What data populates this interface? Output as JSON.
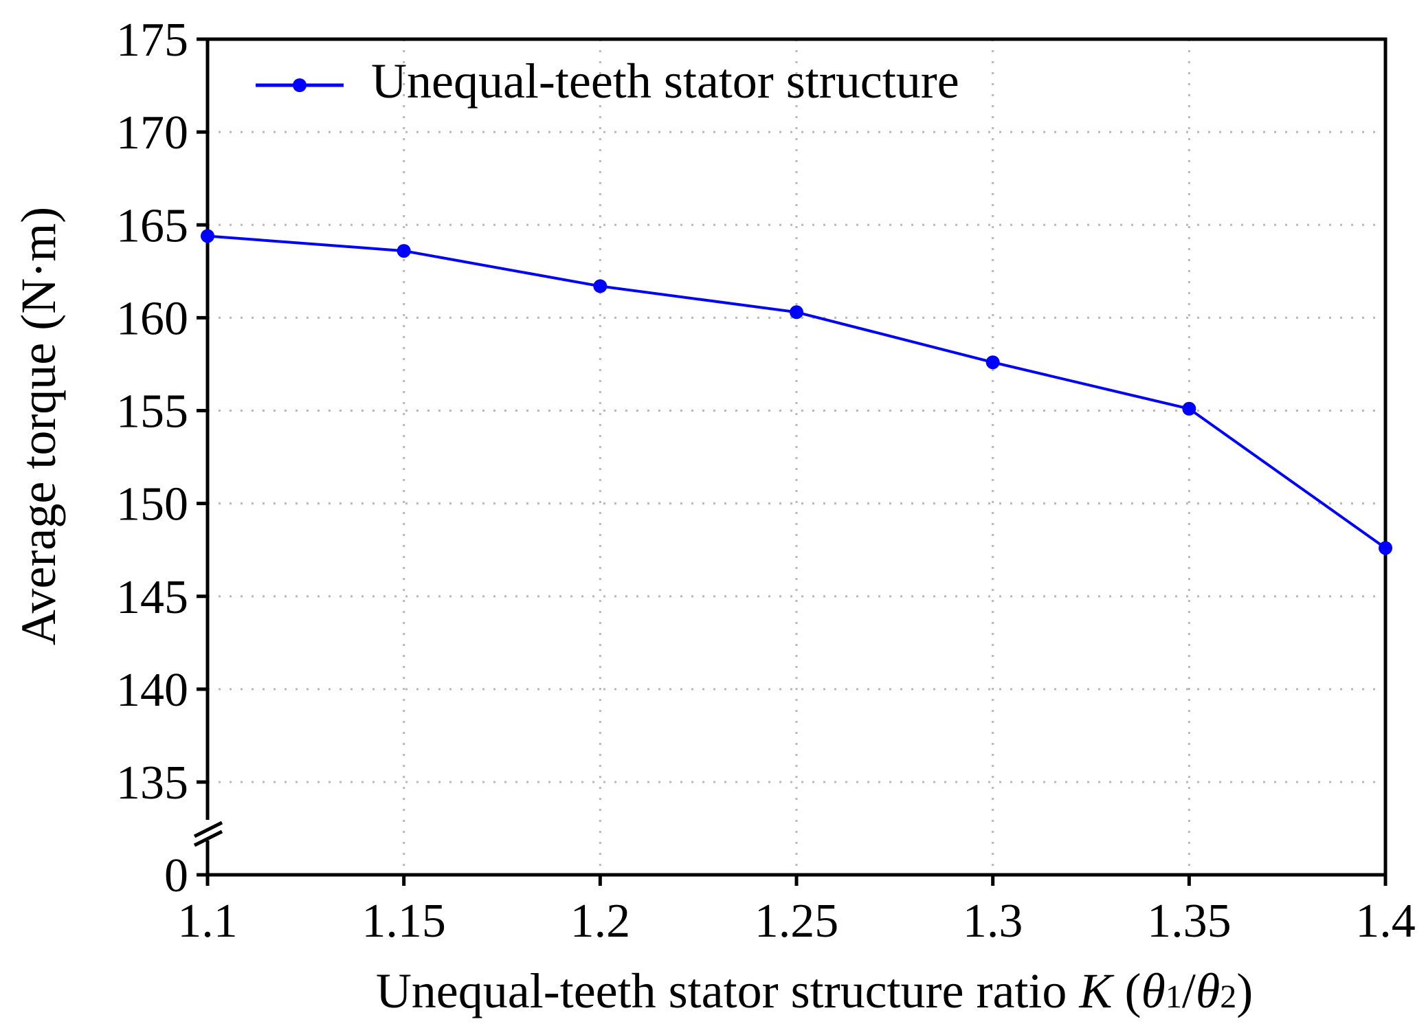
{
  "chart_data": {
    "type": "line",
    "xlabel": {
      "text": "Unequal-teeth stator structure ratio ",
      "var": "K",
      "paren_open": " (",
      "theta1": "θ",
      "sub1": "1",
      "slash": "/",
      "theta2": "θ",
      "sub2": "2",
      "paren_close": ")"
    },
    "ylabel": "Average torque (N·m)",
    "x_ticks": [
      "1.1",
      "1.15",
      "1.2",
      "1.25",
      "1.3",
      "1.35",
      "1.4"
    ],
    "y_ticks": [
      "135",
      "140",
      "145",
      "150",
      "155",
      "160",
      "165",
      "170",
      "175"
    ],
    "y_break_tick": "0",
    "xlim": [
      1.1,
      1.4
    ],
    "ylim": [
      135,
      175
    ],
    "y_axis_break": true,
    "grid": true,
    "legend_position": "top-left",
    "series": [
      {
        "name": "Unequal-teeth stator structure",
        "color": "#0000ff",
        "marker": "circle",
        "x": [
          1.1,
          1.15,
          1.2,
          1.25,
          1.3,
          1.35,
          1.4
        ],
        "y": [
          164.4,
          163.6,
          161.7,
          160.3,
          157.6,
          155.1,
          147.6
        ]
      }
    ]
  }
}
